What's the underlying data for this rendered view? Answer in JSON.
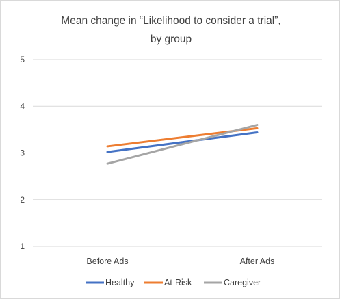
{
  "chart_data": {
    "type": "line",
    "title_lines": [
      "Mean change in “Likelihood to consider a trial”,",
      "by group"
    ],
    "categories": [
      "Before Ads",
      "After Ads"
    ],
    "ylim": [
      1,
      5
    ],
    "yticks": [
      1,
      2,
      3,
      4,
      5
    ],
    "grid": true,
    "legend_position": "bottom",
    "series": [
      {
        "name": "Healthy",
        "color": "#4472C4",
        "values": [
          3.02,
          3.44
        ]
      },
      {
        "name": "At-Risk",
        "color": "#ED7D31",
        "values": [
          3.14,
          3.53
        ]
      },
      {
        "name": "Caregiver",
        "color": "#A5A5A5",
        "values": [
          2.77,
          3.6
        ]
      }
    ]
  }
}
